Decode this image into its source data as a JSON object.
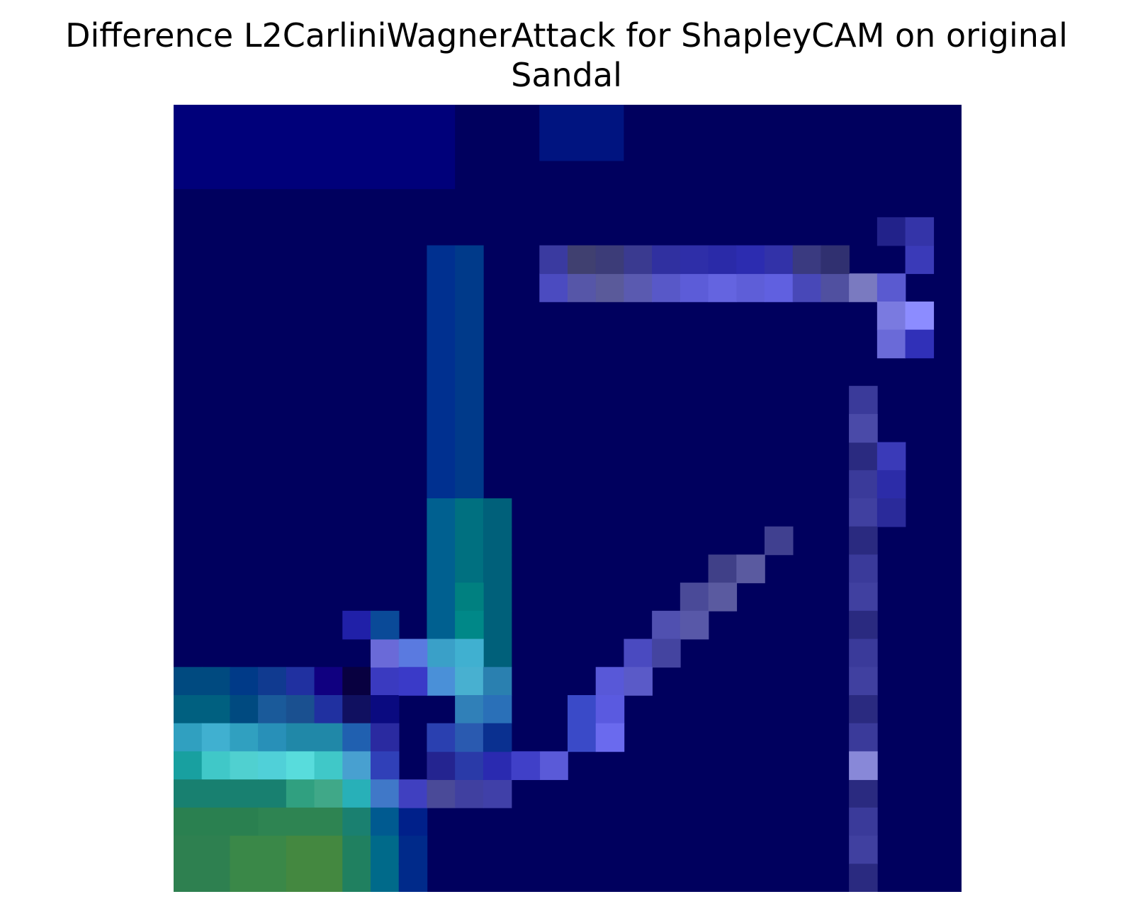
{
  "title": {
    "line1": "Difference L2CarliniWagnerAttack for ShapleyCAM on original",
    "line2": "Sandal"
  },
  "heatmap": {
    "rows": 28,
    "cols": 28,
    "description_palette": [
      "#000060",
      "#10107a",
      "#2a2aa8",
      "#4b4bc8",
      "#6a6ae0",
      "#005a8a",
      "#0a8080",
      "#35b8c8",
      "#2e8a5a",
      "#4a8a40"
    ]
  }
}
